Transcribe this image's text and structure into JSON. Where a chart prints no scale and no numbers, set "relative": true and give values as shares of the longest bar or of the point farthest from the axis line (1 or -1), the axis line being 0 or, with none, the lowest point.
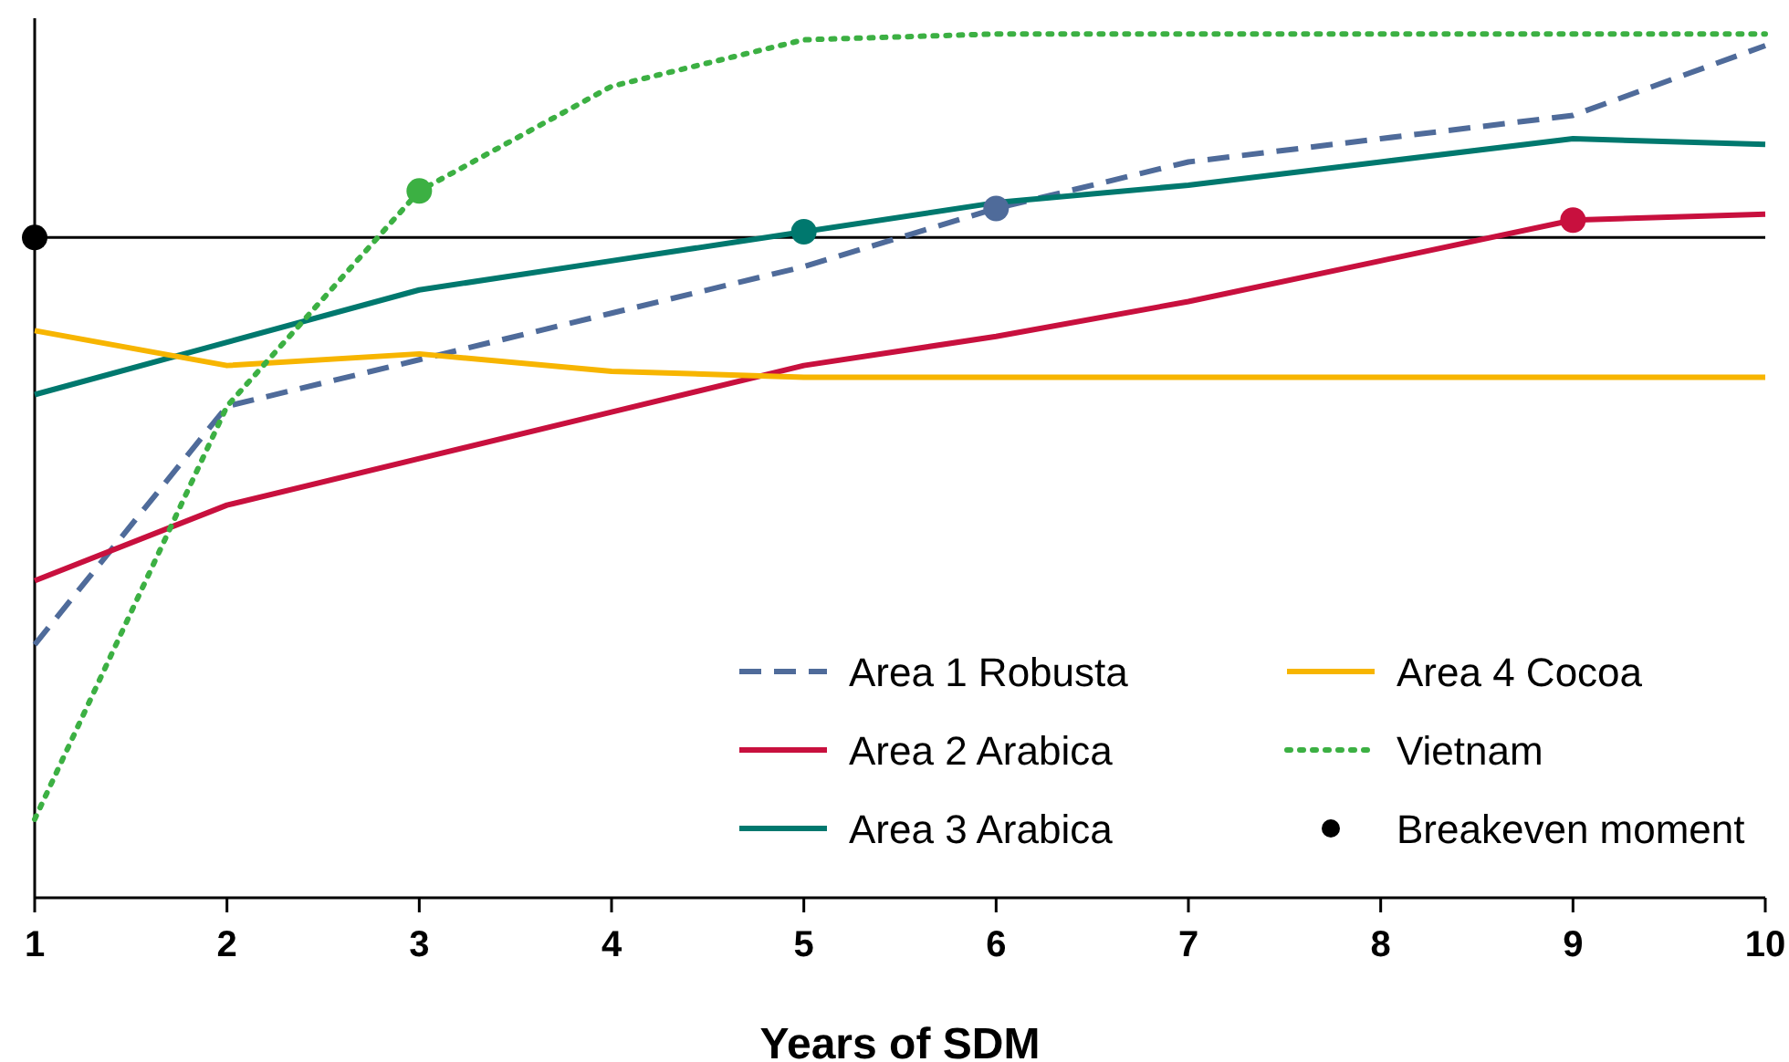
{
  "chart_data": {
    "type": "line",
    "xlabel": "Years of SDM",
    "relative": true,
    "x": [
      1,
      2,
      3,
      4,
      5,
      6,
      7,
      8,
      9,
      10
    ],
    "xlim": [
      1,
      10
    ],
    "xticks": [
      1,
      2,
      3,
      4,
      5,
      6,
      7,
      8,
      9,
      10
    ],
    "legend": "bottom right",
    "grid": false,
    "series": [
      {
        "name": "Area 1 Robusta",
        "color": "#4f6b9a",
        "line_style": "dashed",
        "values": [
          -0.7,
          -0.29,
          -0.21,
          -0.13,
          -0.05,
          0.05,
          0.13,
          0.17,
          0.21,
          0.33
        ]
      },
      {
        "name": "Area 2 Arabica",
        "color": "#c8103e",
        "line_style": "solid",
        "values": [
          -0.59,
          -0.46,
          -0.38,
          -0.3,
          -0.22,
          -0.17,
          -0.11,
          -0.04,
          0.03,
          0.04
        ]
      },
      {
        "name": "Area 3 Arabica",
        "color": "#00786e",
        "line_style": "solid",
        "values": [
          -0.27,
          -0.18,
          -0.09,
          -0.04,
          0.01,
          0.06,
          0.09,
          0.13,
          0.17,
          0.16
        ]
      },
      {
        "name": "Area 4 Cocoa",
        "color": "#f7b500",
        "line_style": "solid",
        "values": [
          -0.16,
          -0.22,
          -0.2,
          -0.23,
          -0.24,
          -0.24,
          -0.24,
          -0.24,
          -0.24,
          -0.24
        ]
      },
      {
        "name": "Vietnam",
        "color": "#3cb043",
        "line_style": "dotted",
        "values": [
          -1,
          -0.29,
          0.08,
          0.26,
          0.34,
          0.35,
          0.35,
          0.35,
          0.35,
          0.35
        ]
      },
      {
        "name": "Breakeven moment",
        "type": "scatter",
        "marker": "circle",
        "color": "#000000",
        "x": [
          1,
          3,
          5,
          6,
          9
        ],
        "values": [
          0,
          0.08,
          0.01,
          0.05,
          0.03
        ],
        "colors": [
          "#000000",
          "#3cb043",
          "#00786e",
          "#4f6b9a",
          "#c8103e"
        ]
      }
    ]
  }
}
